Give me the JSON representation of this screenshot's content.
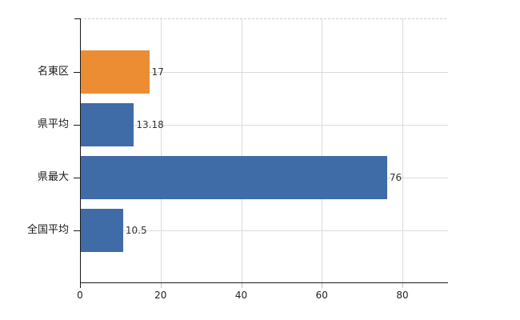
{
  "chart_data": {
    "type": "bar",
    "orientation": "horizontal",
    "title": "",
    "xlabel": "",
    "ylabel": "",
    "categories": [
      "名東区",
      "県平均",
      "県最大",
      "全国平均"
    ],
    "values": [
      17,
      13.18,
      76,
      10.5
    ],
    "value_labels": [
      "17",
      "13.18",
      "76",
      "10.5"
    ],
    "series": [
      {
        "name": "",
        "values": [
          17,
          13.18,
          76,
          10.5
        ]
      }
    ],
    "bar_colors": [
      "#EC8D34",
      "#3F6CA6",
      "#3F6CA6",
      "#3F6CA6"
    ],
    "x_ticks": [
      0,
      20,
      40,
      60,
      80
    ],
    "x_tick_labels": [
      "0",
      "20",
      "40",
      "60",
      "80"
    ],
    "xlim": [
      0,
      91.3
    ],
    "grid": true,
    "grid_horizontal_at_category_centers": true,
    "top_boundary_line": "dashed",
    "legend": false,
    "colors": {
      "bar_blue": "#3F6CA6",
      "bar_orange": "#EC8D34",
      "axis": "#1a1a1a",
      "gridline": "#d8dcd8",
      "vertical_gridline": "#dcdcdc",
      "dashed_top_line": "#c9ccd4",
      "category_text": "#1a1a1a",
      "value_text": "#333333",
      "tick_text": "#222222",
      "background": "#ffffff"
    }
  }
}
